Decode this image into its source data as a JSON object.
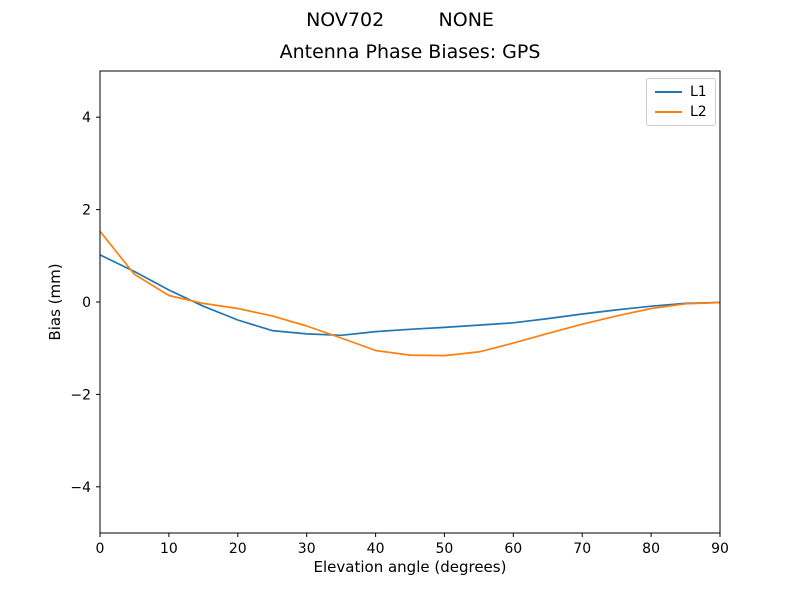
{
  "figure": {
    "suptitle": "NOV702         NONE"
  },
  "chart_data": {
    "type": "line",
    "suptitle": "NOV702         NONE",
    "title": "Antenna Phase Biases: GPS",
    "xlabel": "Elevation angle (degrees)",
    "ylabel": "Bias (mm)",
    "xlim": [
      0,
      90
    ],
    "ylim": [
      -5,
      5
    ],
    "xticks": [
      0,
      10,
      20,
      30,
      40,
      50,
      60,
      70,
      80,
      90
    ],
    "yticks": [
      -4,
      -2,
      0,
      2,
      4
    ],
    "grid": false,
    "legend_position": "upper right",
    "x": [
      0,
      5,
      10,
      15,
      20,
      25,
      30,
      35,
      40,
      45,
      50,
      55,
      60,
      65,
      70,
      75,
      80,
      85,
      90
    ],
    "series": [
      {
        "name": "L1",
        "color": "#1f77b4",
        "values": [
          1.02,
          0.66,
          0.26,
          -0.09,
          -0.39,
          -0.62,
          -0.69,
          -0.72,
          -0.64,
          -0.59,
          -0.55,
          -0.5,
          -0.45,
          -0.36,
          -0.26,
          -0.17,
          -0.09,
          -0.03,
          -0.01
        ]
      },
      {
        "name": "L2",
        "color": "#ff7f0e",
        "values": [
          1.53,
          0.6,
          0.14,
          -0.03,
          -0.14,
          -0.3,
          -0.52,
          -0.78,
          -1.05,
          -1.15,
          -1.16,
          -1.08,
          -0.89,
          -0.68,
          -0.48,
          -0.3,
          -0.14,
          -0.04,
          -0.01
        ]
      }
    ]
  }
}
